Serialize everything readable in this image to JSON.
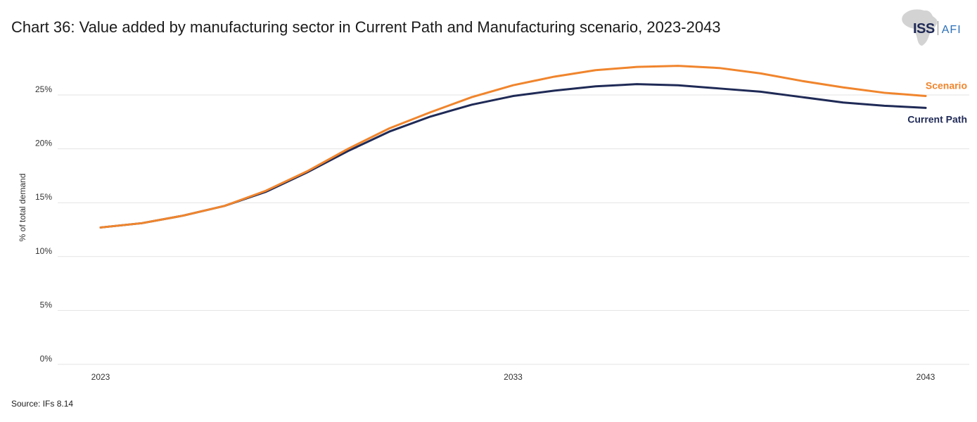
{
  "title": "Chart 36: Value added by manufacturing sector in Current Path and Manufacturing scenario, 2023-2043",
  "source": "Source: IFs 8.14",
  "logo": {
    "primary": "ISS",
    "secondary": "AFI",
    "icon": "africa-map-icon"
  },
  "colors": {
    "scenario": "#f0852d",
    "current_path": "#1f2a56",
    "grid": "#e3e3e3"
  },
  "chart_data": {
    "type": "line",
    "ylabel": "% of total demand",
    "ylim": [
      0,
      25
    ],
    "yticks": [
      "0%",
      "5%",
      "10%",
      "15%",
      "20%",
      "25%"
    ],
    "xlim": [
      2023,
      2043
    ],
    "xticks": [
      "2023",
      "2033",
      "2043"
    ],
    "grid": true,
    "legend": "inline-right",
    "x": [
      2023,
      2024,
      2025,
      2026,
      2027,
      2028,
      2029,
      2030,
      2031,
      2032,
      2033,
      2034,
      2035,
      2036,
      2037,
      2038,
      2039,
      2040,
      2041,
      2042,
      2043
    ],
    "series": [
      {
        "name": "Scenario",
        "color": "#f0852d",
        "values": [
          12.7,
          13.1,
          13.8,
          14.7,
          16.1,
          17.9,
          20.0,
          21.9,
          23.4,
          24.8,
          25.9,
          26.7,
          27.3,
          27.6,
          27.7,
          27.5,
          27.0,
          26.3,
          25.7,
          25.2,
          24.9
        ]
      },
      {
        "name": "Current Path",
        "color": "#1f2a56",
        "values": [
          12.7,
          13.1,
          13.8,
          14.7,
          16.0,
          17.8,
          19.8,
          21.6,
          23.0,
          24.1,
          24.9,
          25.4,
          25.8,
          26.0,
          25.9,
          25.6,
          25.3,
          24.8,
          24.3,
          24.0,
          23.8
        ]
      }
    ]
  }
}
